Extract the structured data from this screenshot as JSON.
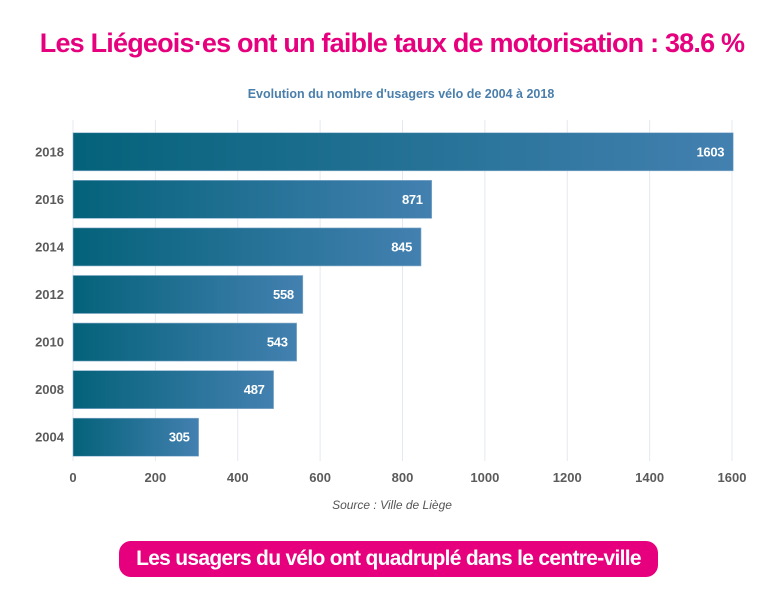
{
  "headline": "Les Liégeois·es ont un faible taux de motorisation : 38.6 %",
  "source": "Source : Ville de Liège",
  "callout": "Les usagers du vélo ont quadruplé dans le centre-ville",
  "colors": {
    "accent": "#e6007e",
    "bar_start": "#04627a",
    "bar_end": "#4380b0",
    "title": "#4a7eab",
    "grid": "#e3e9f0"
  },
  "chart_data": {
    "type": "bar",
    "orientation": "horizontal",
    "title": "Evolution du nombre d'usagers vélo de 2004 à 2018",
    "xlabel": "",
    "ylabel": "",
    "categories": [
      "2018",
      "2016",
      "2014",
      "2012",
      "2010",
      "2008",
      "2004"
    ],
    "values": [
      1603,
      871,
      845,
      558,
      543,
      487,
      305
    ],
    "xlim": [
      0,
      1600
    ],
    "xticks": [
      0,
      200,
      400,
      600,
      800,
      1000,
      1200,
      1400,
      1600
    ],
    "grid": "vertical",
    "legend": "none",
    "data_labels": true
  }
}
